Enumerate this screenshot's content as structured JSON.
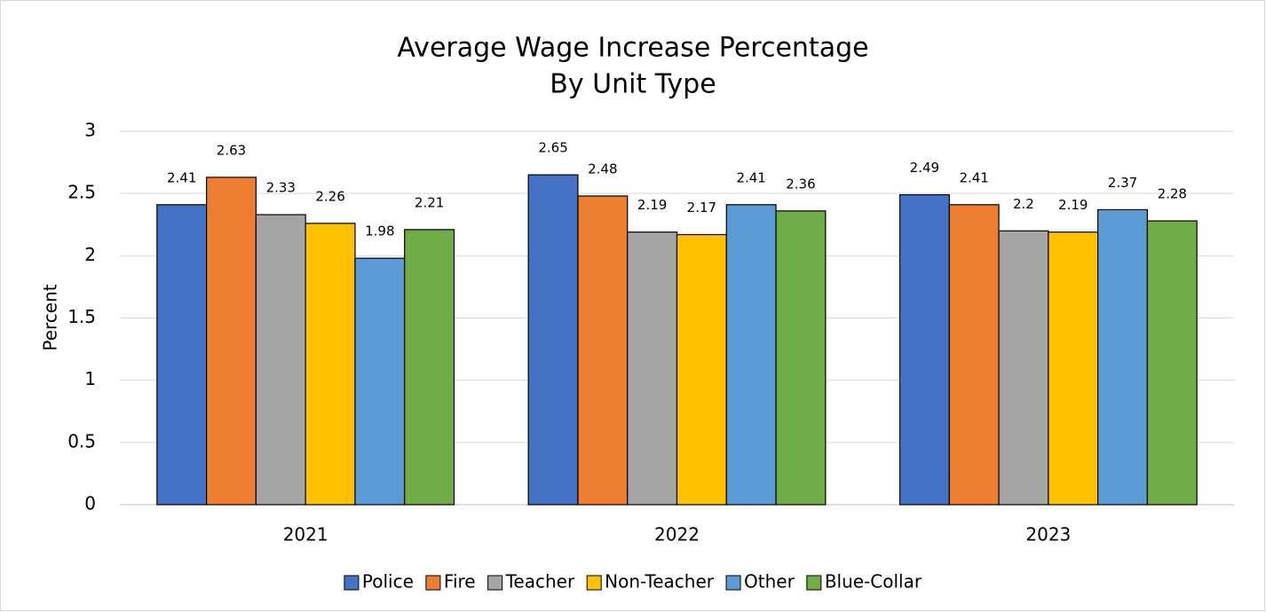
{
  "chart_data": {
    "type": "bar",
    "title": "Average Wage Increase Percentage",
    "subtitle": "By Unit Type",
    "y_label": "Percent",
    "categories": [
      "2021",
      "2022",
      "2023"
    ],
    "series": [
      {
        "name": "Police",
        "color": "#4472c4",
        "values": [
          2.41,
          2.65,
          2.49
        ]
      },
      {
        "name": "Fire",
        "color": "#ed7d31",
        "values": [
          2.63,
          2.48,
          2.41
        ]
      },
      {
        "name": "Teacher",
        "color": "#a5a5a5",
        "values": [
          2.33,
          2.19,
          2.2
        ]
      },
      {
        "name": "Non-Teacher",
        "color": "#ffc000",
        "values": [
          2.26,
          2.17,
          2.19
        ]
      },
      {
        "name": "Other",
        "color": "#5b9bd5",
        "values": [
          1.98,
          2.41,
          2.37
        ]
      },
      {
        "name": "Blue-Collar",
        "color": "#70ad47",
        "values": [
          2.21,
          2.36,
          2.28
        ]
      }
    ],
    "ylim": [
      0,
      3
    ],
    "yticks": [
      0,
      0.5,
      1,
      1.5,
      2,
      2.5,
      3
    ],
    "grid": true,
    "legend": "bottom"
  }
}
